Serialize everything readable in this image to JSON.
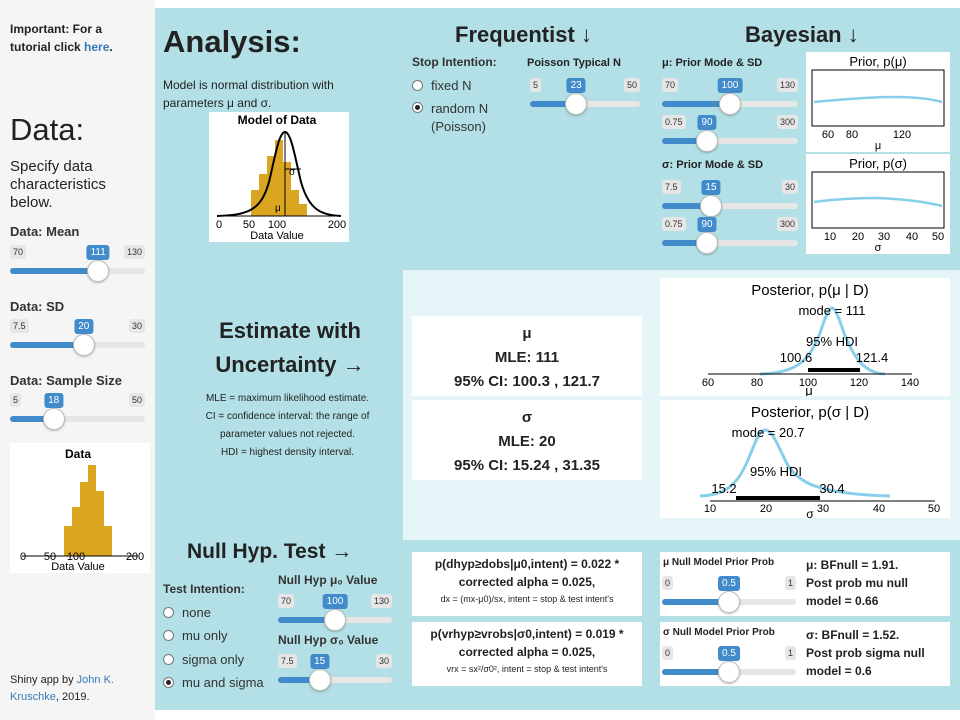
{
  "sidebar": {
    "important_text": "Important: For a tutorial click",
    "important_link": "here",
    "important_end": ".",
    "data_heading": "Data:",
    "data_desc": "Specify data characteristics below.",
    "mean": {
      "label": "Data: Mean",
      "min": "70",
      "max": "130",
      "value": "111",
      "fraction": 0.683
    },
    "sd": {
      "label": "Data: SD",
      "min": "7.5",
      "max": "30",
      "value": "20",
      "fraction": 0.556
    },
    "n": {
      "label": "Data: Sample Size",
      "min": "5",
      "max": "50",
      "value": "18",
      "fraction": 0.289
    },
    "data_plot": {
      "title": "Data",
      "xlabel": "Data Value",
      "ticks": [
        "0",
        "50",
        "100",
        "200"
      ]
    },
    "credit_prefix": "Shiny app by",
    "credit_link": "John K. Kruschke",
    "credit_suffix": ", 2019."
  },
  "analysis": {
    "title": "Analysis:",
    "model_desc": "Model is normal distribution with parameters μ and σ.",
    "model_plot": {
      "title": "Model of Data",
      "xlabel": "Data Value",
      "ticks": [
        "0",
        "50",
        "100",
        "200"
      ],
      "mu": "μ",
      "sigma": "σ"
    }
  },
  "frequentist": {
    "heading": "Frequentist ↓",
    "stop_label": "Stop Intention:",
    "options": [
      {
        "label": "fixed N",
        "selected": false
      },
      {
        "label": "random N (Poisson)",
        "selected": true
      }
    ],
    "poisson": {
      "label": "Poisson Typical N",
      "min": "5",
      "max": "50",
      "value": "23",
      "fraction": 0.4
    }
  },
  "bayesian": {
    "heading": "Bayesian ↓",
    "mu_prior_label": "μ: Prior Mode & SD",
    "mu_mode": {
      "min": "70",
      "max": "130",
      "value": "100",
      "fraction": 0.5
    },
    "mu_sd": {
      "min": "0.75",
      "max": "300",
      "value": "90",
      "fraction": 0.298
    },
    "sigma_prior_label": "σ: Prior Mode & SD",
    "sigma_mode": {
      "min": "7.5",
      "max": "30",
      "value": "15",
      "fraction": 0.333
    },
    "sigma_sd": {
      "min": "0.75",
      "max": "300",
      "value": "90",
      "fraction": 0.298
    },
    "prior_mu": {
      "title": "Prior, p(μ)",
      "ticks": [
        "60",
        "80",
        "120"
      ],
      "xlabel": "μ"
    },
    "prior_sigma": {
      "title": "Prior, p(σ)",
      "ticks": [
        "10",
        "20",
        "30",
        "40",
        "50"
      ],
      "xlabel": "σ"
    }
  },
  "estimate": {
    "heading1": "Estimate with",
    "heading2": "Uncertainty →",
    "notes": [
      "MLE = maximum likelihood estimate.",
      "CI = confidence interval: the range of",
      "parameter values not rejected.",
      "HDI = highest density interval."
    ],
    "mu_box": {
      "param": "μ",
      "mle": "MLE: 111",
      "ci": "95% CI: 100.3 , 121.7"
    },
    "sigma_box": {
      "param": "σ",
      "mle": "MLE: 20",
      "ci": "95% CI: 15.24 , 31.35"
    },
    "post_mu": {
      "title": "Posterior, p(μ | D)",
      "mode": "mode = 111",
      "hdi": "95% HDI",
      "lo": "100.6",
      "hi": "121.4",
      "ticks": [
        "60",
        "80",
        "100",
        "120",
        "140"
      ],
      "xlabel": "μ"
    },
    "post_sigma": {
      "title": "Posterior, p(σ | D)",
      "mode": "mode = 20.7",
      "hdi": "95% HDI",
      "lo": "15.2",
      "hi": "30.4",
      "ticks": [
        "10",
        "20",
        "30",
        "40",
        "50"
      ],
      "xlabel": "σ"
    }
  },
  "nht": {
    "heading": "Null Hyp. Test →",
    "intent_label": "Test Intention:",
    "options": [
      {
        "label": "none",
        "selected": false
      },
      {
        "label": "mu only",
        "selected": false
      },
      {
        "label": "sigma only",
        "selected": false
      },
      {
        "label": "mu and sigma",
        "selected": true
      }
    ],
    "mu0": {
      "label": "Null Hyp μ₀ Value",
      "min": "70",
      "max": "130",
      "value": "100",
      "fraction": 0.5
    },
    "sigma0": {
      "label": "Null Hyp σ₀ Value",
      "min": "7.5",
      "max": "30",
      "value": "15",
      "fraction": 0.333
    },
    "pd": {
      "line1": "p(dhyp≥dobs|μ0,intent) = 0.022 *",
      "line2": "corrected alpha = 0.025,",
      "line3": "dx = (mx-μ0)/sx, intent = stop & test intent's"
    },
    "pvr": {
      "line1": "p(vrhyp≥vrobs|σ0,intent) = 0.019 *",
      "line2": "corrected alpha = 0.025,",
      "line3": "vrx = sx²/σ0², intent = stop & test intent's"
    },
    "mu_null_prior": {
      "label": "μ Null Model Prior Prob",
      "min": "0",
      "max": "1",
      "value": "0.5",
      "fraction": 0.5
    },
    "sigma_null_prior": {
      "label": "σ Null Model Prior Prob",
      "min": "0",
      "max": "1",
      "value": "0.5",
      "fraction": 0.5
    },
    "mu_bf": {
      "line1": "μ: BFnull = 1.91.",
      "line2": "Post prob mu null",
      "line3": "model = 0.66"
    },
    "sigma_bf": {
      "line1": "σ: BFnull = 1.52.",
      "line2": "Post prob sigma null",
      "line3": "model = 0.6"
    }
  },
  "colors": {
    "accent": "#428bca",
    "panel_bg": "#b3e0e6",
    "bar": "#daa520",
    "curve": "#87ceeb"
  }
}
